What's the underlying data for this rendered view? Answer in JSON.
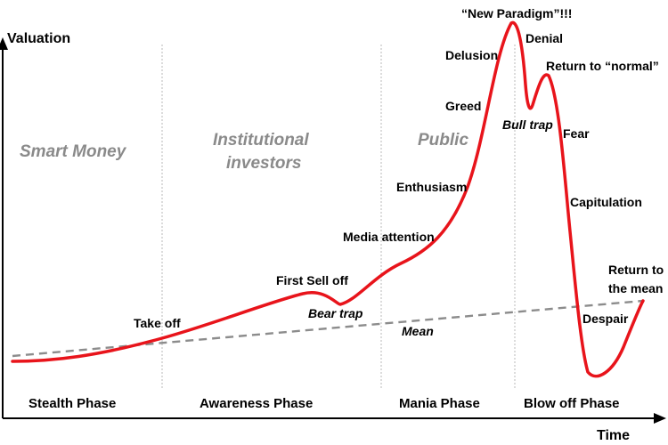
{
  "axes": {
    "y_label": "Valuation",
    "x_label": "Time"
  },
  "colors": {
    "curve": "#e8141b",
    "mean": "#8c8c8c",
    "divider": "#b8b8b8",
    "investor_text": "#8a8a8a",
    "axis": "#000000"
  },
  "investors": {
    "smart_money": "Smart Money",
    "institutional_line1": "Institutional",
    "institutional_line2": "investors",
    "public": "Public"
  },
  "phases": [
    "Stealth Phase",
    "Awareness Phase",
    "Mania Phase",
    "Blow off Phase"
  ],
  "annotations": {
    "take_off": "Take off",
    "first_sell_off": "First Sell off",
    "bear_trap": "Bear trap",
    "media_attention": "Media attention",
    "enthusiasm": "Enthusiasm",
    "greed": "Greed",
    "delusion": "Delusion",
    "new_paradigm": "“New Paradigm”!!!",
    "denial": "Denial",
    "bull_trap": "Bull trap",
    "return_to_normal": "Return to “normal”",
    "fear": "Fear",
    "capitulation": "Capitulation",
    "mean": "Mean",
    "despair": "Despair",
    "return_to_mean_line1": "Return to",
    "return_to_mean_line2": "the mean"
  }
}
